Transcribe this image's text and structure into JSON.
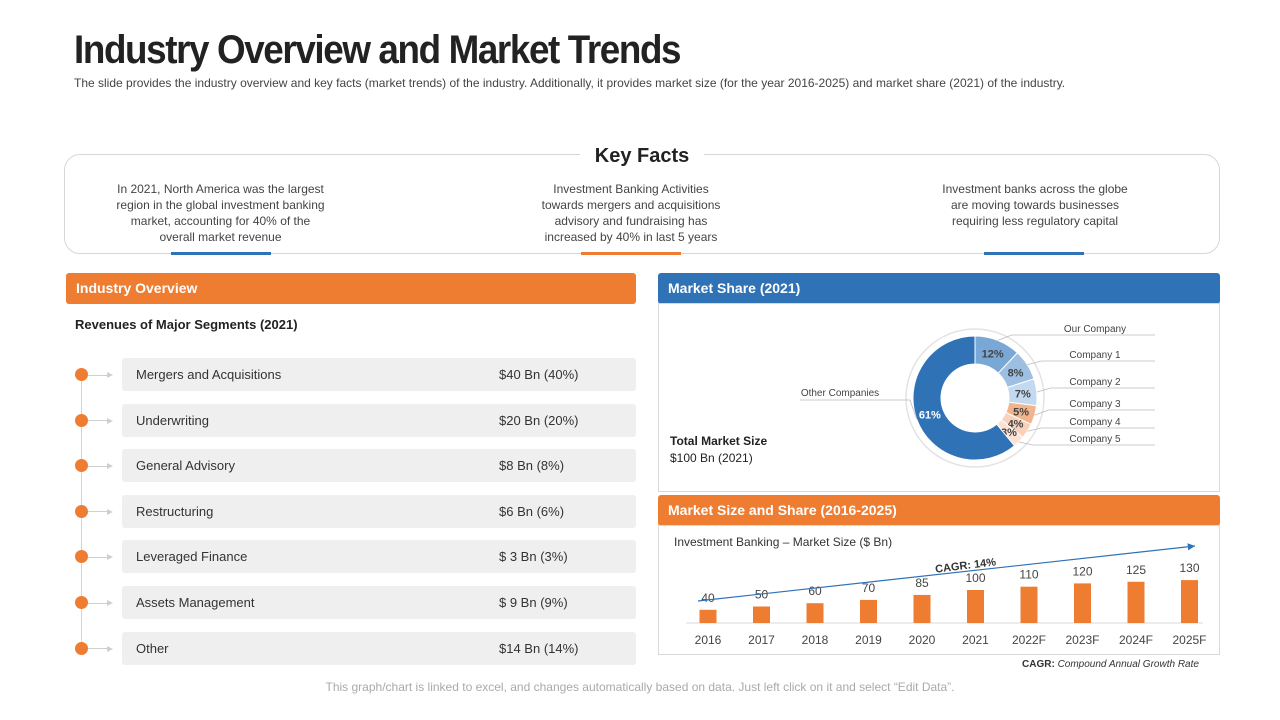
{
  "page": {
    "title": "Industry Overview and Market Trends",
    "subtitle": "The slide provides the industry overview and key facts (market trends) of the industry. Additionally, it provides market size (for the year 2016-2025) and market share (2021) of the industry."
  },
  "key_facts": {
    "title": "Key Facts",
    "items": [
      {
        "text": "In 2021, North America was the largest region in the global investment banking market, accounting for 40% of the overall market revenue",
        "color": "#2f72b5"
      },
      {
        "text": "Investment Banking Activities towards mergers and acquisitions advisory and fundraising has increased by 40% in last 5 years",
        "color": "#ee7d31"
      },
      {
        "text": "Investment banks across the globe are moving towards businesses requiring less regulatory capital",
        "color": "#2f72b5"
      }
    ]
  },
  "industry_overview": {
    "header": "Industry Overview",
    "subtitle": "Revenues of Major Segments (2021)",
    "segments": [
      {
        "label": "Mergers and Acquisitions",
        "value": "$40 Bn (40%)"
      },
      {
        "label": "Underwriting",
        "value": "$20 Bn (20%)"
      },
      {
        "label": "General Advisory",
        "value": "$8 Bn (8%)"
      },
      {
        "label": "Restructuring",
        "value": "$6 Bn (6%)"
      },
      {
        "label": "Leveraged Finance",
        "value": "$ 3 Bn (3%)"
      },
      {
        "label": "Assets Management",
        "value": "$ 9 Bn (9%)"
      },
      {
        "label": "Other",
        "value": "$14 Bn (14%)"
      }
    ]
  },
  "market_share": {
    "header": "Market Share (2021)",
    "total_label": "Total Market Size",
    "total_value": "$100 Bn (2021)"
  },
  "market_size": {
    "header": "Market Size and Share (2016-2025)",
    "cagr_label": "CAGR: 14%"
  },
  "footnote": {
    "abbr": "CAGR:",
    "text": "Compound Annual Growth Rate"
  },
  "bottom_note": "This graph/chart is linked to excel, and changes automatically based on data. Just left click on it and select “Edit Data”.",
  "colors": {
    "orange": "#ee7d31",
    "blue": "#2f72b5"
  },
  "chart_data": [
    {
      "type": "pie",
      "title": "Market Share (2021)",
      "categories": [
        "Our Company",
        "Company 1",
        "Company 2",
        "Company 3",
        "Company 4",
        "Company 5",
        "Other Companies"
      ],
      "values": [
        12,
        8,
        7,
        5,
        4,
        3,
        61
      ],
      "labels": [
        "12%",
        "8%",
        "7%",
        "5%",
        "4%",
        "3%",
        "61%"
      ],
      "colors": [
        "#7aa8d6",
        "#9cbfe2",
        "#c3d9ef",
        "#f2b48c",
        "#f8d2bc",
        "#fbe2d4",
        "#2f72b5"
      ]
    },
    {
      "type": "bar",
      "title": "Investment Banking – Market Size ($ Bn)",
      "categories": [
        "2016",
        "2017",
        "2018",
        "2019",
        "2020",
        "2021",
        "2022F",
        "2023F",
        "2024F",
        "2025F"
      ],
      "values": [
        40,
        50,
        60,
        70,
        85,
        100,
        110,
        120,
        125,
        130
      ],
      "xlabel": "",
      "ylabel": "",
      "annotation": "CAGR: 14%"
    }
  ]
}
